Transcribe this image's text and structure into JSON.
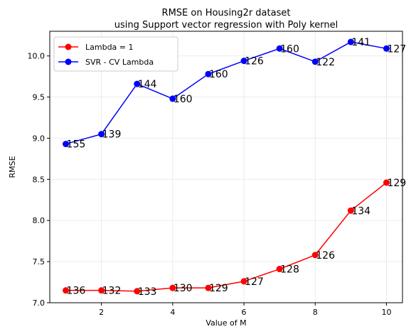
{
  "chart_data": {
    "type": "line",
    "title": "RMSE on Housing2r dataset",
    "subtitle": "using Support vector regression with Poly kernel",
    "xlabel": "Value of M",
    "ylabel": "RMSE",
    "xlim": [
      0.55,
      10.45
    ],
    "ylim": [
      7.0,
      10.3
    ],
    "xticks": [
      2,
      4,
      6,
      8,
      10
    ],
    "yticks": [
      7.0,
      7.5,
      8.0,
      8.5,
      9.0,
      9.5,
      10.0
    ],
    "grid": true,
    "legend_position": "top-left",
    "x": [
      1,
      2,
      3,
      4,
      5,
      6,
      7,
      8,
      9,
      10
    ],
    "series": [
      {
        "name": "Lambda = 1",
        "color": "#ff0000",
        "values": [
          7.15,
          7.15,
          7.14,
          7.18,
          7.18,
          7.26,
          7.41,
          7.58,
          8.12,
          8.46
        ],
        "labels": [
          "136",
          "132",
          "133",
          "130",
          "129",
          "127",
          "128",
          "126",
          "134",
          "129"
        ]
      },
      {
        "name": "SVR - CV Lambda",
        "color": "#0000ff",
        "values": [
          8.93,
          9.05,
          9.66,
          9.48,
          9.78,
          9.94,
          10.09,
          9.93,
          10.17,
          10.09
        ],
        "labels": [
          "155",
          "139",
          "144",
          "160",
          "160",
          "126",
          "160",
          "122",
          "141",
          "127"
        ]
      }
    ]
  }
}
